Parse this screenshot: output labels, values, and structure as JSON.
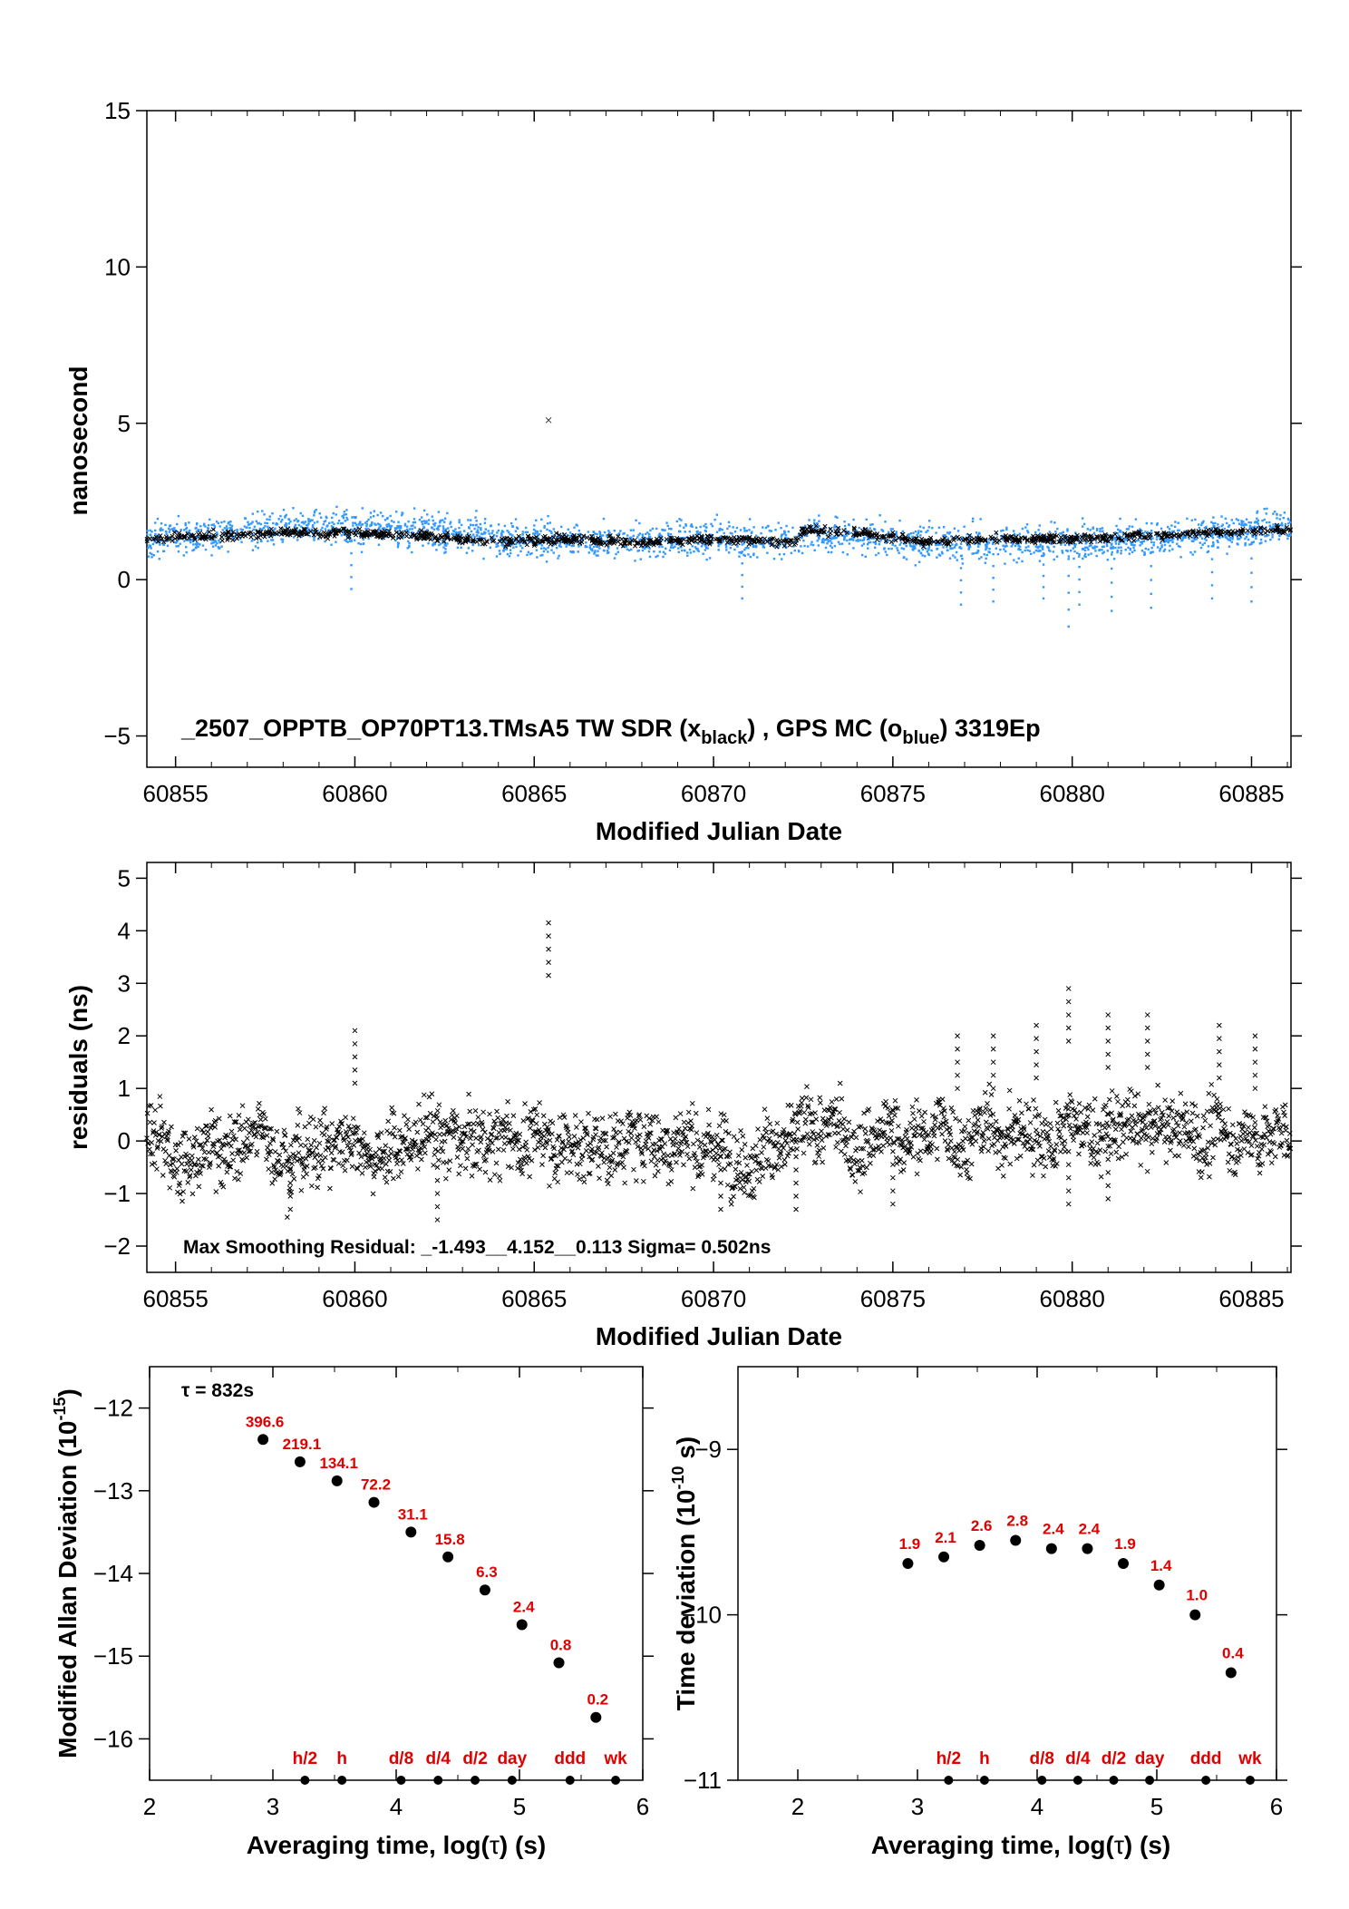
{
  "chart_data": [
    {
      "id": "top",
      "type": "scatter",
      "title": "_2507_OPPTB_OP70PT13.TMsA5     TW SDR (x",
      "legend_parts": {
        "lead": "_2507_OPPTB_OP70PT13.TMsA5     TW SDR (x",
        "sub1": "black",
        "mid": ") ,  GPS MC (o",
        "sub2": "blue",
        "tail": ")  3319Ep"
      },
      "xlabel": "Modified Julian Date",
      "ylabel": "nanosecond",
      "xlim": [
        60854.2,
        60886.1
      ],
      "ylim": [
        -6,
        15
      ],
      "xticks": [
        60855,
        60860,
        60865,
        60870,
        60875,
        60880,
        60885
      ],
      "yticks": [
        -5,
        0,
        5,
        10,
        15
      ],
      "ytick_labels": [
        "−5",
        "0",
        "5",
        "10",
        "15"
      ],
      "series": [
        {
          "name": "TW SDR",
          "marker": "x",
          "color": "#000000",
          "trend_x": [
            60854.2,
            60856,
            60858,
            60860,
            60862,
            60864,
            60866,
            60868,
            60870,
            60872.3,
            60872.5,
            60874,
            60876,
            60878,
            60880,
            60882,
            60884,
            60886.1
          ],
          "trend_y": [
            1.3,
            1.4,
            1.5,
            1.5,
            1.4,
            1.2,
            1.3,
            1.2,
            1.3,
            1.2,
            1.6,
            1.5,
            1.2,
            1.3,
            1.3,
            1.4,
            1.5,
            1.6
          ],
          "outliers": [
            [
              60865.4,
              5.1
            ]
          ]
        },
        {
          "name": "GPS MC",
          "marker": "o",
          "color": "#3399ff",
          "trend_x": [
            60854.2,
            60856,
            60858,
            60860,
            60862,
            60864,
            60866,
            60868,
            60870,
            60872.3,
            60872.5,
            60874,
            60876,
            60878,
            60880,
            60882,
            60884,
            60886.1
          ],
          "trend_y": [
            1.3,
            1.4,
            1.7,
            1.6,
            1.6,
            1.3,
            1.3,
            1.2,
            1.3,
            1.2,
            1.5,
            1.4,
            1.1,
            1.2,
            1.2,
            1.3,
            1.5,
            1.7
          ],
          "dips": [
            [
              60859.9,
              -0.3
            ],
            [
              60870.8,
              -0.6
            ],
            [
              60876.9,
              -0.8
            ],
            [
              60877.8,
              -0.7
            ],
            [
              60879.2,
              -0.6
            ],
            [
              60879.9,
              -1.5
            ],
            [
              60880.2,
              -0.8
            ],
            [
              60881.1,
              -1.0
            ],
            [
              60882.2,
              -0.9
            ],
            [
              60883.9,
              -0.6
            ],
            [
              60885.0,
              -0.7
            ]
          ]
        }
      ]
    },
    {
      "id": "mid",
      "type": "scatter",
      "xlabel": "Modified Julian Date",
      "ylabel": "residuals (ns)",
      "xlim": [
        60854.2,
        60886.1
      ],
      "ylim": [
        -2.5,
        5.3
      ],
      "xticks": [
        60855,
        60860,
        60865,
        60870,
        60875,
        60880,
        60885
      ],
      "yticks": [
        -2,
        -1,
        0,
        1,
        2,
        3,
        4,
        5
      ],
      "ytick_labels": [
        "−2",
        "−1",
        "0",
        "1",
        "2",
        "3",
        "4",
        "5"
      ],
      "annotation": "Max Smoothing Residual: _-1.493__4.152__0.113  Sigma= 0.502ns",
      "series": [
        {
          "name": "residuals",
          "marker": "x",
          "color": "#000000",
          "sigma": 0.502,
          "min": -1.493,
          "max": 4.152,
          "outliers": [
            [
              60865.4,
              4.15
            ],
            [
              60860.0,
              2.1
            ],
            [
              60876.8,
              2.0
            ],
            [
              60877.8,
              2.0
            ],
            [
              60879.0,
              2.2
            ],
            [
              60879.9,
              2.9
            ],
            [
              60881.0,
              2.4
            ],
            [
              60882.1,
              2.4
            ],
            [
              60884.1,
              2.2
            ],
            [
              60885.1,
              2.0
            ],
            [
              60858.2,
              -1.3
            ],
            [
              60862.3,
              -1.5
            ],
            [
              60870.2,
              -1.3
            ],
            [
              60872.3,
              -1.3
            ],
            [
              60875.0,
              -1.2
            ],
            [
              60879.9,
              -1.2
            ],
            [
              60881.0,
              -1.1
            ]
          ]
        }
      ]
    },
    {
      "id": "mdev",
      "type": "scatter",
      "xlabel_parts": [
        "Averaging time, log(",
        "τ",
        ") (s)"
      ],
      "ylabel_parts": [
        "Modified Allan Deviation (10",
        "-15",
        ")"
      ],
      "xlim": [
        2,
        6
      ],
      "ylim": [
        -16.5,
        -11.5
      ],
      "xticks": [
        2,
        3,
        4,
        5,
        6
      ],
      "yticks": [
        -16,
        -15,
        -14,
        -13,
        -12
      ],
      "ytick_labels": [
        "−16",
        "−15",
        "−14",
        "−13",
        "−12"
      ],
      "tau_note": "τ = 832s",
      "x": [
        2.92,
        3.22,
        3.52,
        3.82,
        4.12,
        4.42,
        4.72,
        5.02,
        5.32,
        5.62
      ],
      "y": [
        -12.38,
        -12.65,
        -12.88,
        -13.14,
        -13.5,
        -13.8,
        -14.2,
        -14.62,
        -15.08,
        -15.74
      ],
      "point_labels": [
        "396.6",
        "219.1",
        "134.1",
        "72.2",
        "31.1",
        "15.8",
        "6.3",
        "2.4",
        "0.8",
        "0.2"
      ],
      "markers": [
        "h/2",
        "h",
        "d/8",
        "d/4",
        "d/2",
        "day",
        "ddd",
        "wk"
      ],
      "marker_x": [
        3.26,
        3.56,
        4.04,
        4.34,
        4.64,
        4.94,
        5.41,
        5.78
      ]
    },
    {
      "id": "tdev",
      "type": "scatter",
      "xlabel_parts": [
        "Averaging time, log(",
        "τ",
        ") (s)"
      ],
      "ylabel_parts": [
        "Time deviation (10",
        "-10",
        " s)"
      ],
      "xlim": [
        1.5,
        6
      ],
      "ylim": [
        -11,
        -8.5
      ],
      "xticks": [
        2,
        3,
        4,
        5,
        6
      ],
      "yticks": [
        -11,
        -10,
        -9
      ],
      "ytick_labels": [
        "−11",
        "−10",
        "−9"
      ],
      "x": [
        2.92,
        3.22,
        3.52,
        3.82,
        4.12,
        4.42,
        4.72,
        5.02,
        5.32,
        5.62
      ],
      "y": [
        -9.69,
        -9.65,
        -9.58,
        -9.55,
        -9.6,
        -9.6,
        -9.69,
        -9.82,
        -10.0,
        -10.35
      ],
      "point_labels": [
        "1.9",
        "2.1",
        "2.6",
        "2.8",
        "2.4",
        "2.4",
        "1.9",
        "1.4",
        "1.0",
        "0.4"
      ],
      "markers": [
        "h/2",
        "h",
        "d/8",
        "d/4",
        "d/2",
        "day",
        "ddd",
        "wk"
      ],
      "marker_x": [
        3.26,
        3.56,
        4.04,
        4.34,
        4.64,
        4.94,
        5.41,
        5.78
      ]
    }
  ]
}
